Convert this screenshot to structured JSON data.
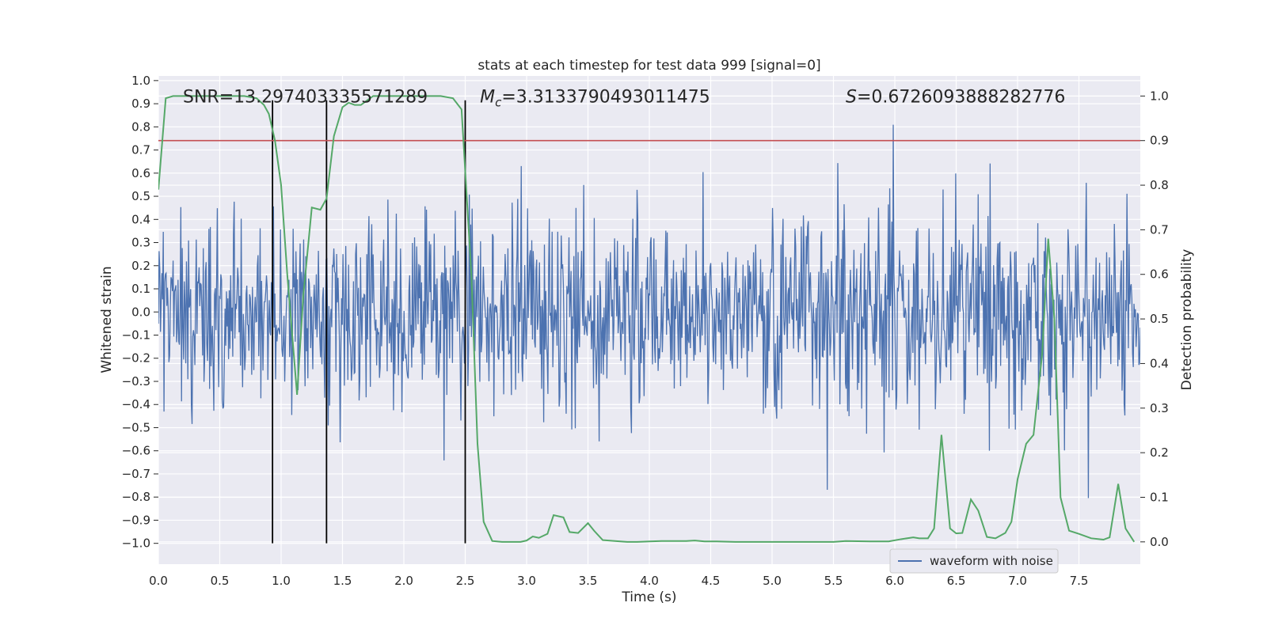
{
  "chart_data": {
    "type": "line",
    "title": "stats at each timestep for test data 999 [signal=0]",
    "xlabel": "Time (s)",
    "ylabel_left": "Whitened strain",
    "ylabel_right": "Detection probability",
    "xlim": [
      0.0,
      8.0
    ],
    "ylim_left": [
      -1.09,
      1.02
    ],
    "ylim_right": [
      -0.05,
      1.045
    ],
    "x_ticks": [
      0.0,
      0.5,
      1.0,
      1.5,
      2.0,
      2.5,
      3.0,
      3.5,
      4.0,
      4.5,
      5.0,
      5.5,
      6.0,
      6.5,
      7.0,
      7.5
    ],
    "x_tick_labels": [
      "0.0",
      "0.5",
      "1.0",
      "1.5",
      "2.0",
      "2.5",
      "3.0",
      "3.5",
      "4.0",
      "4.5",
      "5.0",
      "5.5",
      "6.0",
      "6.5",
      "7.0",
      "7.5"
    ],
    "y_left_ticks": [
      1.0,
      0.9,
      0.8,
      0.7,
      0.6,
      0.5,
      0.4,
      0.3,
      0.2,
      0.1,
      0.0,
      -0.1,
      -0.2,
      -0.3,
      -0.4,
      -0.5,
      -0.6,
      -0.7,
      -0.8,
      -0.9,
      -1.0
    ],
    "y_left_tick_labels": [
      "1.0",
      "0.9",
      "0.8",
      "0.7",
      "0.6",
      "0.5",
      "0.4",
      "0.3",
      "0.2",
      "0.1",
      "0.0",
      "−0.1",
      "−0.2",
      "−0.3",
      "−0.4",
      "−0.5",
      "−0.6",
      "−0.7",
      "−0.8",
      "−0.9",
      "−1.0"
    ],
    "y_right_ticks": [
      1.0,
      0.9,
      0.8,
      0.7,
      0.6,
      0.5,
      0.4,
      0.3,
      0.2,
      0.1,
      0.0
    ],
    "y_right_tick_labels": [
      "1.0",
      "0.9",
      "0.8",
      "0.7",
      "0.6",
      "0.5",
      "0.4",
      "0.3",
      "0.2",
      "0.1",
      "0.0"
    ],
    "grid": true,
    "annotations": [
      {
        "prefix": "SNR",
        "subscript": "",
        "italic": false,
        "value": "=13.297403335571289",
        "x": 0.2
      },
      {
        "prefix": "M",
        "subscript": "c",
        "italic": true,
        "value": "=3.3133790493011475",
        "x": 2.62
      },
      {
        "prefix": "S",
        "subscript": "",
        "italic": true,
        "value": "=0.6726093888282776",
        "x": 5.6
      }
    ],
    "annotation_y_left": 0.905,
    "threshold": {
      "axis": "right",
      "value": 0.9,
      "color": "#c44e52"
    },
    "vertical_lines": [
      0.93,
      1.37,
      2.5
    ],
    "vertical_line_range_left": [
      -1.0,
      0.915
    ],
    "waveform": {
      "name": "waveform with noise",
      "color": "#4c72b0",
      "axis": "left",
      "n_samples": 1400,
      "envelope_rms": 0.2,
      "extreme_range": [
        -1.0,
        0.91
      ]
    },
    "probability": {
      "axis": "right",
      "color": "#55a868",
      "x": [
        0.0,
        0.06,
        0.12,
        0.2,
        0.3,
        0.4,
        0.5,
        0.6,
        0.7,
        0.8,
        0.86,
        0.9,
        0.95,
        1.0,
        1.05,
        1.13,
        1.18,
        1.25,
        1.32,
        1.37,
        1.43,
        1.5,
        1.55,
        1.6,
        1.65,
        1.7,
        1.75,
        1.8,
        1.9,
        2.0,
        2.1,
        2.2,
        2.3,
        2.4,
        2.47,
        2.55,
        2.6,
        2.65,
        2.72,
        2.8,
        2.9,
        2.95,
        3.0,
        3.05,
        3.1,
        3.17,
        3.22,
        3.3,
        3.35,
        3.42,
        3.5,
        3.55,
        3.62,
        3.72,
        3.82,
        3.9,
        4.0,
        4.1,
        4.2,
        4.3,
        4.37,
        4.45,
        4.55,
        4.7,
        4.85,
        5.0,
        5.2,
        5.4,
        5.5,
        5.6,
        5.8,
        5.95,
        6.05,
        6.15,
        6.2,
        6.27,
        6.32,
        6.38,
        6.45,
        6.5,
        6.55,
        6.62,
        6.68,
        6.75,
        6.82,
        6.9,
        6.95,
        7.0,
        7.07,
        7.13,
        7.2,
        7.25,
        7.3,
        7.35,
        7.42,
        7.5,
        7.6,
        7.7,
        7.75,
        7.82,
        7.88,
        7.95
      ],
      "values": [
        0.79,
        0.995,
        1.0,
        1.0,
        1.0,
        1.0,
        1.0,
        1.0,
        1.0,
        0.995,
        0.98,
        0.96,
        0.9,
        0.8,
        0.6,
        0.33,
        0.55,
        0.75,
        0.745,
        0.77,
        0.91,
        0.975,
        0.985,
        0.98,
        0.98,
        0.99,
        1.0,
        1.0,
        1.0,
        1.0,
        1.0,
        1.0,
        1.0,
        0.995,
        0.97,
        0.6,
        0.22,
        0.045,
        0.002,
        0.0,
        0.0,
        0.0,
        0.003,
        0.012,
        0.009,
        0.018,
        0.06,
        0.055,
        0.022,
        0.02,
        0.042,
        0.025,
        0.004,
        0.002,
        0.0,
        0.0,
        0.001,
        0.002,
        0.002,
        0.002,
        0.003,
        0.001,
        0.001,
        0.0,
        0.0,
        0.0,
        0.0,
        0.0,
        0.0,
        0.002,
        0.001,
        0.001,
        0.006,
        0.01,
        0.008,
        0.008,
        0.03,
        0.24,
        0.03,
        0.019,
        0.02,
        0.095,
        0.07,
        0.011,
        0.008,
        0.02,
        0.045,
        0.14,
        0.22,
        0.24,
        0.42,
        0.68,
        0.5,
        0.1,
        0.025,
        0.018,
        0.008,
        0.005,
        0.01,
        0.13,
        0.03,
        0.0
      ]
    },
    "legend": {
      "placement": "lower-right",
      "entries": [
        "waveform with noise"
      ]
    }
  }
}
